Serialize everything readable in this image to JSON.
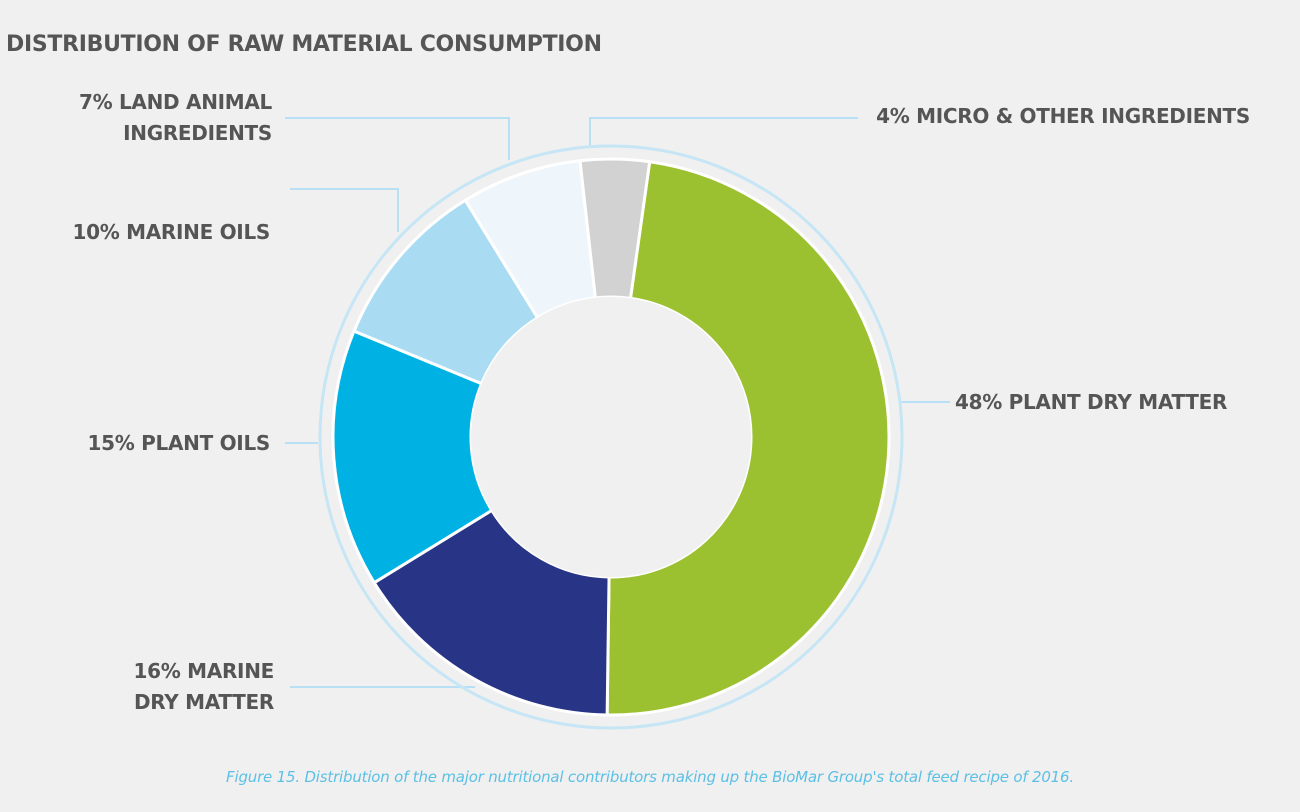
{
  "chart_data": {
    "type": "pie",
    "title": "DISTRIBUTION OF RAW MATERIAL CONSUMPTION",
    "categories": [
      "PLANT DRY MATTER",
      "MARINE DRY MATTER",
      "PLANT OILS",
      "MARINE OILS",
      "LAND ANIMAL INGREDIENTS",
      "MICRO & OTHER INGREDIENTS"
    ],
    "values": [
      48,
      16,
      15,
      10,
      7,
      4
    ],
    "unit": "%",
    "colors": [
      "#9bc130",
      "#283486",
      "#00b2e3",
      "#a9dcf3",
      "#eef5fb",
      "#d2d2d2"
    ],
    "labels": [
      {
        "lines": [
          "48% PLANT DRY MATTER"
        ]
      },
      {
        "lines": [
          "16% MARINE",
          "DRY MATTER"
        ]
      },
      {
        "lines": [
          "15% PLANT OILS"
        ]
      },
      {
        "lines": [
          "10% MARINE OILS"
        ]
      },
      {
        "lines": [
          "7% LAND ANIMAL",
          "INGREDIENTS"
        ]
      },
      {
        "lines": [
          "4% MICRO & OTHER INGREDIENTS"
        ]
      }
    ],
    "caption": "Figure 15. Distribution of the major nutritional contributors making up the BioMar Group's total feed recipe of 2016."
  },
  "style": {
    "ring_color": "#c6e6f5",
    "leader_color": "#b8e0f4"
  }
}
